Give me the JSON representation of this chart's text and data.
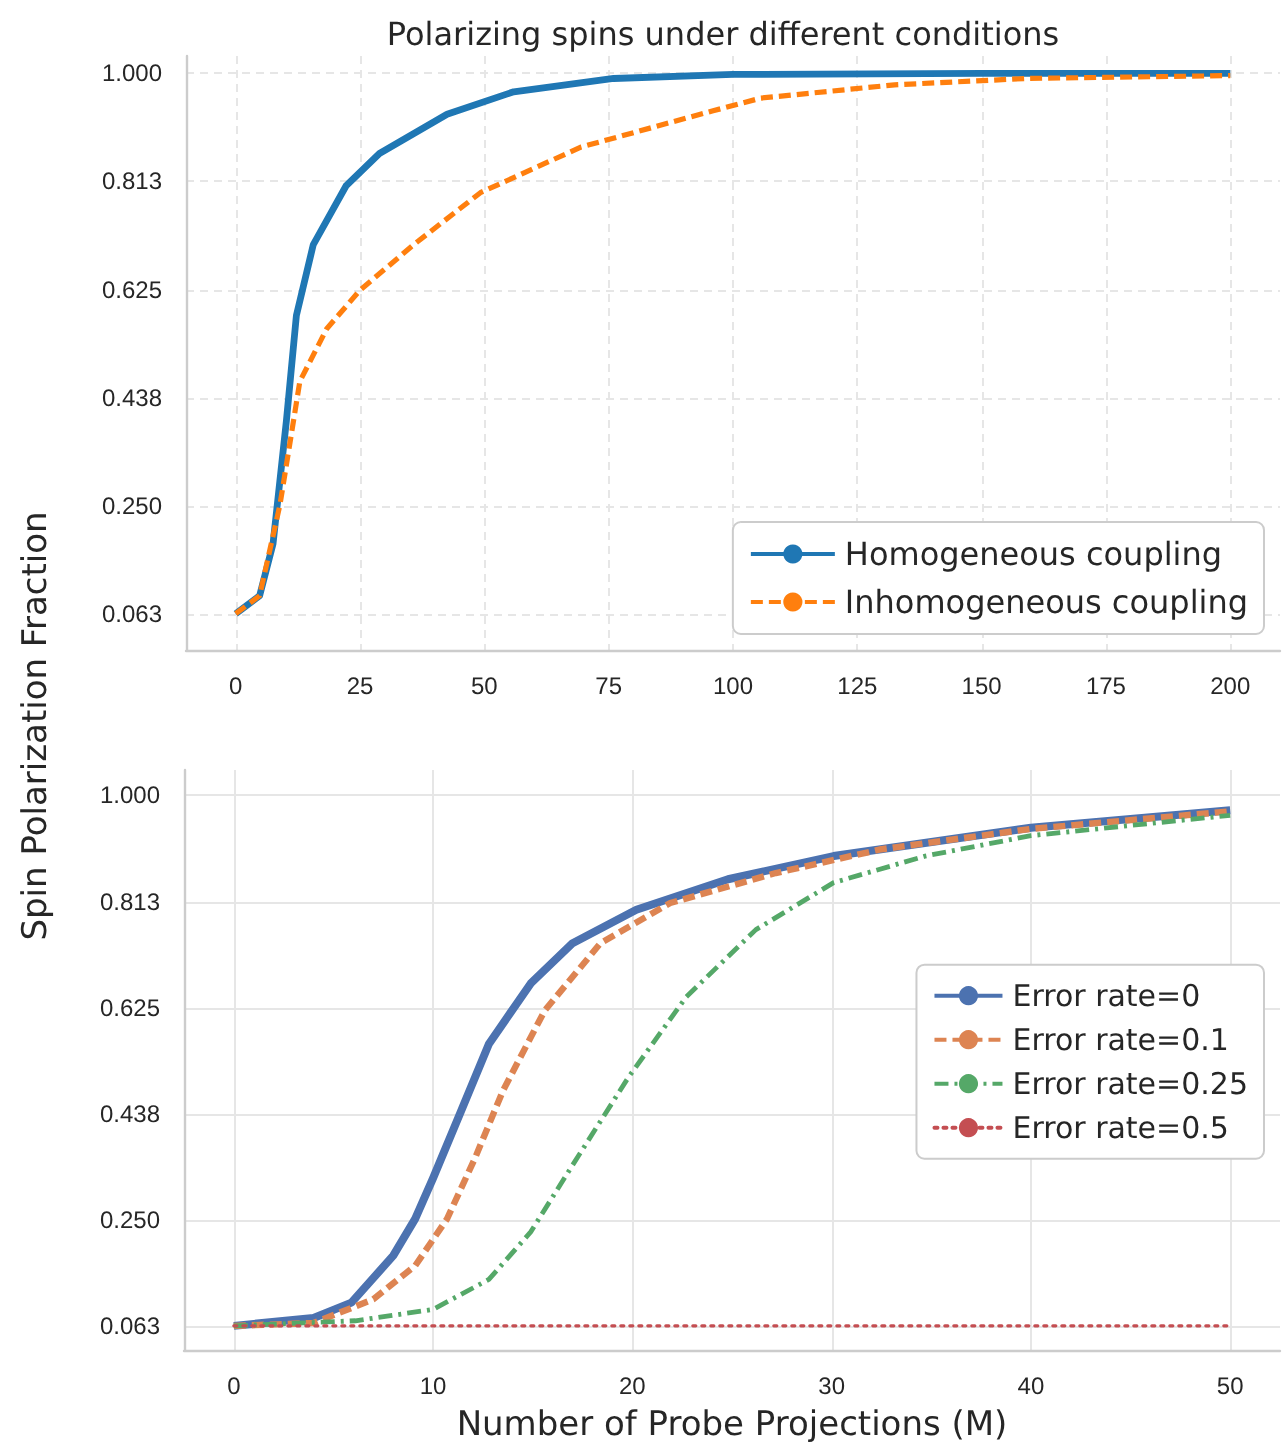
{
  "chart_data": [
    {
      "type": "line",
      "title": "Polarizing spins under different conditions",
      "ylabel": "Spin Polarization Fraction",
      "xlim": [
        -10,
        210
      ],
      "xticks": [
        0,
        25,
        50,
        75,
        100,
        125,
        150,
        175,
        200
      ],
      "ylim": [
        0,
        1.03
      ],
      "yticks": [
        {
          "value": 0.0625,
          "label": "0.063"
        },
        {
          "value": 0.25,
          "label": "0.250"
        },
        {
          "value": 0.4375,
          "label": "0.438"
        },
        {
          "value": 0.625,
          "label": "0.625"
        },
        {
          "value": 0.8125,
          "label": "0.813"
        },
        {
          "value": 1,
          "label": "1.000"
        }
      ],
      "grid": true,
      "legend": "bottom right",
      "series": [
        {
          "name": "Homogeneous coupling",
          "color": "#1f77b4",
          "line_style": "solid",
          "x": [
            0,
            4.8,
            7.5,
            10.2,
            12.2,
            15.6,
            22.2,
            28.9,
            42.5,
            55.9,
            76,
            100,
            150,
            200
          ],
          "values": [
            0.063,
            0.094,
            0.184,
            0.398,
            0.58,
            0.703,
            0.805,
            0.861,
            0.929,
            0.968,
            0.991,
            0.998,
            1,
            1
          ]
        },
        {
          "name": "Inhomogeneous coupling",
          "color": "#ff7f0e",
          "line_style": "dashed",
          "x": [
            0,
            4.8,
            8.9,
            12.9,
            18.3,
            25,
            35.8,
            49.2,
            69.4,
            96,
            105.6,
            132.5,
            159,
            200
          ],
          "values": [
            0.063,
            0.094,
            0.252,
            0.466,
            0.557,
            0.624,
            0.703,
            0.793,
            0.872,
            0.935,
            0.957,
            0.98,
            0.991,
            0.996
          ]
        }
      ]
    },
    {
      "type": "line",
      "xlabel": "Number of Probe Projections (M)",
      "xlim": [
        -2.5,
        52.5
      ],
      "xticks": [
        0,
        10,
        20,
        30,
        40,
        50
      ],
      "ylim": [
        0.02,
        1.045
      ],
      "yticks": [
        {
          "value": 0.0625,
          "label": "0.063"
        },
        {
          "value": 0.25,
          "label": "0.250"
        },
        {
          "value": 0.4375,
          "label": "0.438"
        },
        {
          "value": 0.625,
          "label": "0.625"
        },
        {
          "value": 0.8125,
          "label": "0.813"
        },
        {
          "value": 1,
          "label": "1.000"
        }
      ],
      "grid": true,
      "legend": "right",
      "series": [
        {
          "name": "Error rate=0",
          "color": "#4c72b0",
          "line_style": "solid",
          "x": [
            0,
            4,
            5.9,
            8,
            9.1,
            10,
            11.4,
            12.8,
            14.9,
            17,
            20.2,
            24.8,
            30.1,
            40,
            50
          ],
          "values": [
            0.063,
            0.077,
            0.104,
            0.187,
            0.252,
            0.324,
            0.442,
            0.561,
            0.668,
            0.739,
            0.798,
            0.852,
            0.893,
            0.943,
            0.974
          ]
        },
        {
          "name": "Error rate=0.1",
          "color": "#dd8452",
          "line_style": "dashed",
          "x": [
            0,
            4,
            7,
            9.1,
            10.7,
            12.1,
            13.5,
            15.6,
            18.4,
            21.9,
            27.2,
            32.5,
            40,
            50
          ],
          "values": [
            0.063,
            0.068,
            0.11,
            0.169,
            0.252,
            0.359,
            0.478,
            0.62,
            0.739,
            0.81,
            0.863,
            0.905,
            0.941,
            0.972
          ]
        },
        {
          "name": "Error rate=0.25",
          "color": "#55a868",
          "line_style": "dashdot",
          "x": [
            0,
            6.1,
            10,
            12.8,
            14.9,
            17,
            19.8,
            22.7,
            26.2,
            30.1,
            34.7,
            40,
            50
          ],
          "values": [
            0.063,
            0.072,
            0.092,
            0.145,
            0.229,
            0.347,
            0.502,
            0.644,
            0.763,
            0.846,
            0.893,
            0.929,
            0.965
          ]
        },
        {
          "name": "Error rate=0.5",
          "color": "#c44e52",
          "line_style": "dotted",
          "x": [
            0,
            50
          ],
          "values": [
            0.063,
            0.063
          ]
        }
      ]
    }
  ]
}
